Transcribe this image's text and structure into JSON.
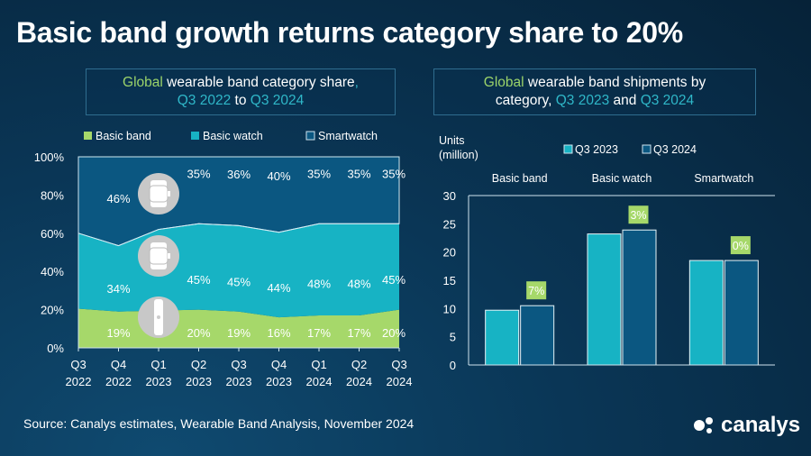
{
  "title": "Basic band growth returns category share to 20%",
  "left_subtitle": {
    "p1": "Global",
    "p2": " wearable band category share",
    "p3": ",",
    "p4": "Q3 2022",
    "p5": " to ",
    "p6": "Q3 2024"
  },
  "right_subtitle": {
    "p1": "Global",
    "p2": " wearable band shipments by",
    "p3": "category, ",
    "p4": "Q3 2023",
    "p5": " and ",
    "p6": "Q3 2024"
  },
  "source": "Source: Canalys estimates, Wearable Band Analysis, November 2024",
  "logo_text": "canalys",
  "colors": {
    "basic_band": "#a6d86a",
    "basic_watch": "#17b3c4",
    "smartwatch": "#0b5781",
    "q3_2023": "#17b3c4",
    "q3_2024": "#0b5781",
    "label_bg": "#a6d86a"
  },
  "chart_data": [
    {
      "type": "area",
      "stacked": true,
      "categories": [
        "Q3\n2022",
        "Q4\n2022",
        "Q1\n2023",
        "Q2\n2023",
        "Q3\n2023",
        "Q4\n2023",
        "Q1\n2024",
        "Q2\n2024",
        "Q3\n2024"
      ],
      "series": [
        {
          "name": "Basic band",
          "values": [
            20.5,
            19,
            19.5,
            20,
            19,
            16,
            17,
            17,
            20
          ],
          "labels": [
            "",
            "19%",
            "",
            "20%",
            "19%",
            "16%",
            "17%",
            "17%",
            "20%"
          ]
        },
        {
          "name": "Basic watch",
          "values": [
            39.5,
            34.5,
            42.5,
            45,
            45,
            44.5,
            48,
            48,
            45
          ],
          "labels": [
            "",
            "34%",
            "",
            "45%",
            "45%",
            "44%",
            "48%",
            "48%",
            "45%"
          ]
        },
        {
          "name": "Smartwatch",
          "values": [
            40,
            46.5,
            38,
            35,
            36,
            39.5,
            35,
            35,
            35
          ],
          "labels": [
            "",
            "46%",
            "",
            "35%",
            "36%",
            "40%",
            "35%",
            "35%",
            "35%"
          ]
        }
      ],
      "yticks": [
        "0%",
        "20%",
        "40%",
        "60%",
        "80%",
        "100%"
      ],
      "ylim": [
        0,
        100
      ],
      "legend": "top",
      "icons": [
        "smartwatch-icon",
        "basic-watch-icon",
        "basic-band-icon"
      ]
    },
    {
      "type": "bar",
      "ylabel": "Units\n(million)",
      "categories": [
        "Basic band",
        "Basic watch",
        "Smartwatch"
      ],
      "series": [
        {
          "name": "Q3 2023",
          "values": [
            9.7,
            23.2,
            18.5
          ]
        },
        {
          "name": "Q3 2024",
          "values": [
            10.5,
            23.9,
            18.5
          ]
        }
      ],
      "growth_labels": [
        "7%",
        "3%",
        "0%"
      ],
      "yticks": [
        "0",
        "5",
        "10",
        "15",
        "20",
        "25",
        "30"
      ],
      "ylim": [
        0,
        30
      ],
      "legend": "top"
    }
  ]
}
